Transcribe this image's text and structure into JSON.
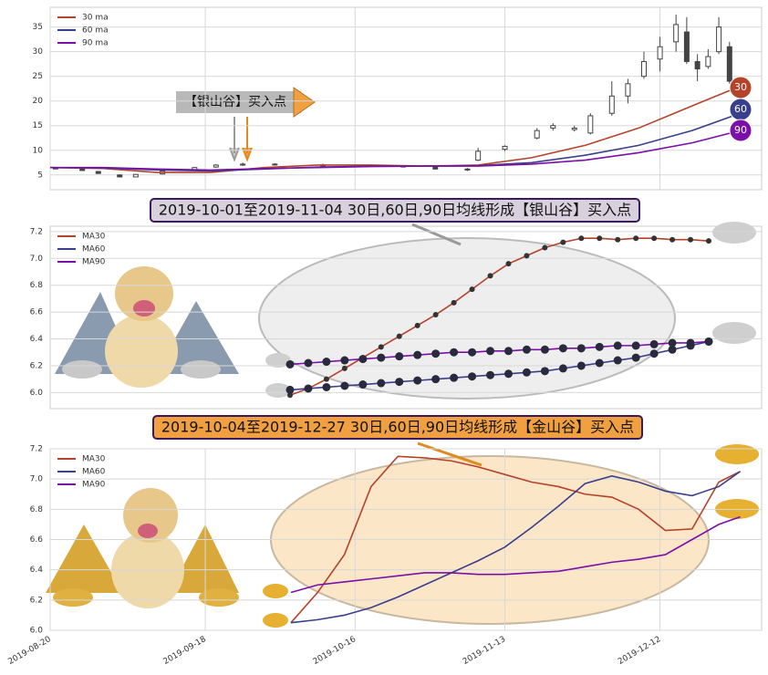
{
  "chart_data": [
    {
      "type": "candlestick",
      "x": [
        "2019-08-21",
        "2019-08-26",
        "2019-08-29",
        "2019-09-02",
        "2019-09-05",
        "2019-09-10",
        "2019-09-16",
        "2019-09-20",
        "2019-09-25",
        "2019-10-01",
        "2019-10-10",
        "2019-10-18",
        "2019-10-25",
        "2019-10-31",
        "2019-11-06",
        "2019-11-08",
        "2019-11-13",
        "2019-11-19",
        "2019-11-22",
        "2019-11-26",
        "2019-11-29",
        "2019-12-03",
        "2019-12-06",
        "2019-12-09",
        "2019-12-12",
        "2019-12-15",
        "2019-12-17",
        "2019-12-19",
        "2019-12-21",
        "2019-12-23",
        "2019-12-25"
      ],
      "open": [
        6.4,
        6.2,
        5.7,
        5.0,
        4.6,
        5.2,
        6.0,
        6.6,
        7.0,
        7.2,
        7.0,
        6.9,
        6.8,
        6.6,
        6.2,
        8.0,
        10.2,
        12.5,
        14.5,
        14.2,
        13.5,
        17.5,
        21.0,
        25.0,
        28.5,
        32.0,
        34.0,
        28.0,
        27.0,
        30.0,
        31.0
      ],
      "high": [
        6.6,
        6.3,
        5.8,
        5.1,
        5.2,
        5.9,
        6.6,
        7.2,
        7.5,
        7.4,
        7.3,
        7.1,
        7.0,
        6.8,
        6.4,
        10.5,
        11.0,
        14.5,
        15.5,
        15.0,
        17.5,
        24.0,
        24.5,
        30.0,
        33.0,
        37.5,
        37.0,
        29.5,
        30.5,
        37.0,
        32.0
      ],
      "low": [
        6.2,
        5.8,
        5.2,
        4.5,
        4.5,
        5.1,
        5.9,
        6.4,
        6.8,
        6.9,
        6.7,
        6.6,
        6.5,
        6.1,
        5.8,
        7.8,
        9.8,
        12.2,
        14.0,
        13.8,
        13.2,
        17.0,
        19.5,
        24.5,
        26.0,
        30.0,
        27.5,
        24.0,
        26.5,
        29.5,
        23.5
      ],
      "close": [
        6.3,
        5.9,
        5.3,
        4.6,
        5.1,
        5.8,
        6.5,
        7.0,
        7.2,
        7.1,
        6.9,
        6.8,
        6.7,
        6.2,
        6.0,
        9.8,
        10.8,
        14.0,
        15.0,
        14.5,
        17.0,
        21.0,
        23.5,
        28.0,
        31.0,
        35.5,
        28.0,
        26.5,
        29.0,
        35.0,
        24.0
      ],
      "series": [
        {
          "name": "30 ma",
          "color": "#b5432a",
          "x": [
            "2019-08-20",
            "2019-08-30",
            "2019-09-09",
            "2019-09-19",
            "2019-09-29",
            "2019-10-09",
            "2019-10-19",
            "2019-10-29",
            "2019-11-08",
            "2019-11-18",
            "2019-11-28",
            "2019-12-08",
            "2019-12-18",
            "2019-12-27"
          ],
          "values": [
            6.5,
            6.3,
            5.5,
            5.5,
            6.5,
            7,
            7,
            6.8,
            7,
            8.5,
            11,
            14.5,
            19,
            23
          ]
        },
        {
          "name": "60 ma",
          "color": "#3a3f8c",
          "x": [
            "2019-08-20",
            "2019-08-30",
            "2019-09-09",
            "2019-09-19",
            "2019-09-29",
            "2019-10-09",
            "2019-10-19",
            "2019-10-29",
            "2019-11-08",
            "2019-11-18",
            "2019-11-28",
            "2019-12-08",
            "2019-12-18",
            "2019-12-27"
          ],
          "values": [
            6.5,
            6.4,
            6,
            5.8,
            6.2,
            6.6,
            6.8,
            6.8,
            6.9,
            7.5,
            9,
            11,
            14,
            17.5
          ]
        },
        {
          "name": "90 ma",
          "color": "#7b0fa8",
          "x": [
            "2019-08-20",
            "2019-08-30",
            "2019-09-09",
            "2019-09-19",
            "2019-09-29",
            "2019-10-09",
            "2019-10-19",
            "2019-10-29",
            "2019-11-08",
            "2019-11-18",
            "2019-11-28",
            "2019-12-08",
            "2019-12-18",
            "2019-12-27"
          ],
          "values": [
            6.5,
            6.5,
            6.2,
            6.0,
            6.3,
            6.5,
            6.7,
            6.8,
            6.8,
            7.2,
            8,
            9.5,
            11.5,
            14
          ]
        }
      ],
      "badges": [
        "30",
        "60",
        "90"
      ],
      "annotation": "【银山谷】买入点",
      "xlim": [
        "2019-08-20",
        "2019-12-31"
      ],
      "ylim": [
        2,
        39
      ],
      "yticks": [
        5,
        10,
        15,
        20,
        25,
        30,
        35
      ],
      "grid": true,
      "legend": "upper left"
    },
    {
      "type": "line",
      "title": "2019-10-01至2019-11-04 30日,60日,90日均线形成【银山谷】买入点",
      "categories": [
        null,
        null,
        null,
        null,
        null,
        null,
        null,
        null,
        null,
        null,
        null,
        null,
        null,
        null,
        null,
        null,
        null,
        null,
        null,
        null,
        null,
        null,
        null,
        null
      ],
      "series": [
        {
          "name": "MA30",
          "color": "#b5432a",
          "values": [
            5.98,
            6.03,
            6.1,
            6.18,
            6.26,
            6.34,
            6.42,
            6.5,
            6.58,
            6.67,
            6.77,
            6.87,
            6.96,
            7.02,
            7.08,
            7.12,
            7.15,
            7.15,
            7.14,
            7.15,
            7.15,
            7.14,
            7.14,
            7.13
          ]
        },
        {
          "name": "MA60",
          "color": "#3a3f8c",
          "values": [
            6.02,
            6.03,
            6.04,
            6.05,
            6.06,
            6.07,
            6.08,
            6.09,
            6.1,
            6.11,
            6.12,
            6.13,
            6.14,
            6.15,
            6.16,
            6.18,
            6.2,
            6.22,
            6.24,
            6.26,
            6.29,
            6.32,
            6.35,
            6.38
          ]
        },
        {
          "name": "MA90",
          "color": "#7b0fa8",
          "values": [
            6.21,
            6.22,
            6.23,
            6.24,
            6.25,
            6.26,
            6.27,
            6.28,
            6.29,
            6.3,
            6.3,
            6.31,
            6.31,
            6.32,
            6.32,
            6.33,
            6.33,
            6.34,
            6.35,
            6.35,
            6.36,
            6.37,
            6.37,
            6.38
          ]
        }
      ],
      "markers": true,
      "ylim": [
        5.88,
        7.24
      ],
      "yticks": [
        {
          "value": 6,
          "label": "6.0"
        },
        6.2,
        6.4,
        6.6,
        6.8,
        {
          "value": 7,
          "label": "7.0"
        },
        7.2
      ],
      "grid": true,
      "legend": "upper left"
    },
    {
      "type": "line",
      "title": "2019-10-04至2019-12-27 30日,60日,90日均线形成【金山谷】买入点",
      "x": [
        "2019-10-04",
        "2019-10-09",
        "2019-10-14",
        "2019-10-19",
        "2019-10-24",
        "2019-10-29",
        "2019-11-03",
        "2019-11-08",
        "2019-11-13",
        "2019-11-18",
        "2019-11-23",
        "2019-11-28",
        "2019-12-03",
        "2019-12-08",
        "2019-12-13",
        "2019-12-18",
        "2019-12-23",
        "2019-12-27"
      ],
      "series": [
        {
          "name": "MA30",
          "color": "#b5432a",
          "values": [
            6.05,
            6.25,
            6.5,
            6.95,
            7.15,
            7.14,
            7.12,
            7.08,
            7.03,
            6.98,
            6.95,
            6.9,
            6.88,
            6.8,
            6.66,
            6.67,
            6.98,
            7.05
          ]
        },
        {
          "name": "MA60",
          "color": "#3a3f8c",
          "values": [
            6.05,
            6.07,
            6.1,
            6.15,
            6.22,
            6.3,
            6.38,
            6.46,
            6.55,
            6.68,
            6.82,
            6.97,
            7.02,
            6.98,
            6.92,
            6.89,
            6.95,
            7.05
          ]
        },
        {
          "name": "MA90",
          "color": "#7b0fa8",
          "values": [
            6.25,
            6.3,
            6.32,
            6.34,
            6.36,
            6.38,
            6.38,
            6.37,
            6.37,
            6.38,
            6.39,
            6.42,
            6.45,
            6.47,
            6.5,
            6.6,
            6.7,
            6.75
          ]
        }
      ],
      "xlim": [
        "2019-08-20",
        "2019-12-31"
      ],
      "xticks": [
        "2019-08-20",
        "2019-09-18",
        "2019-10-16",
        "2019-11-13",
        "2019-12-12"
      ],
      "ylim": [
        6.0,
        7.2
      ],
      "yticks": [
        {
          "value": 6,
          "label": "6.0"
        },
        6.2,
        6.4,
        6.6,
        6.8,
        {
          "value": 7,
          "label": "7.0"
        },
        7.2
      ],
      "grid": true,
      "legend": "upper left"
    }
  ]
}
